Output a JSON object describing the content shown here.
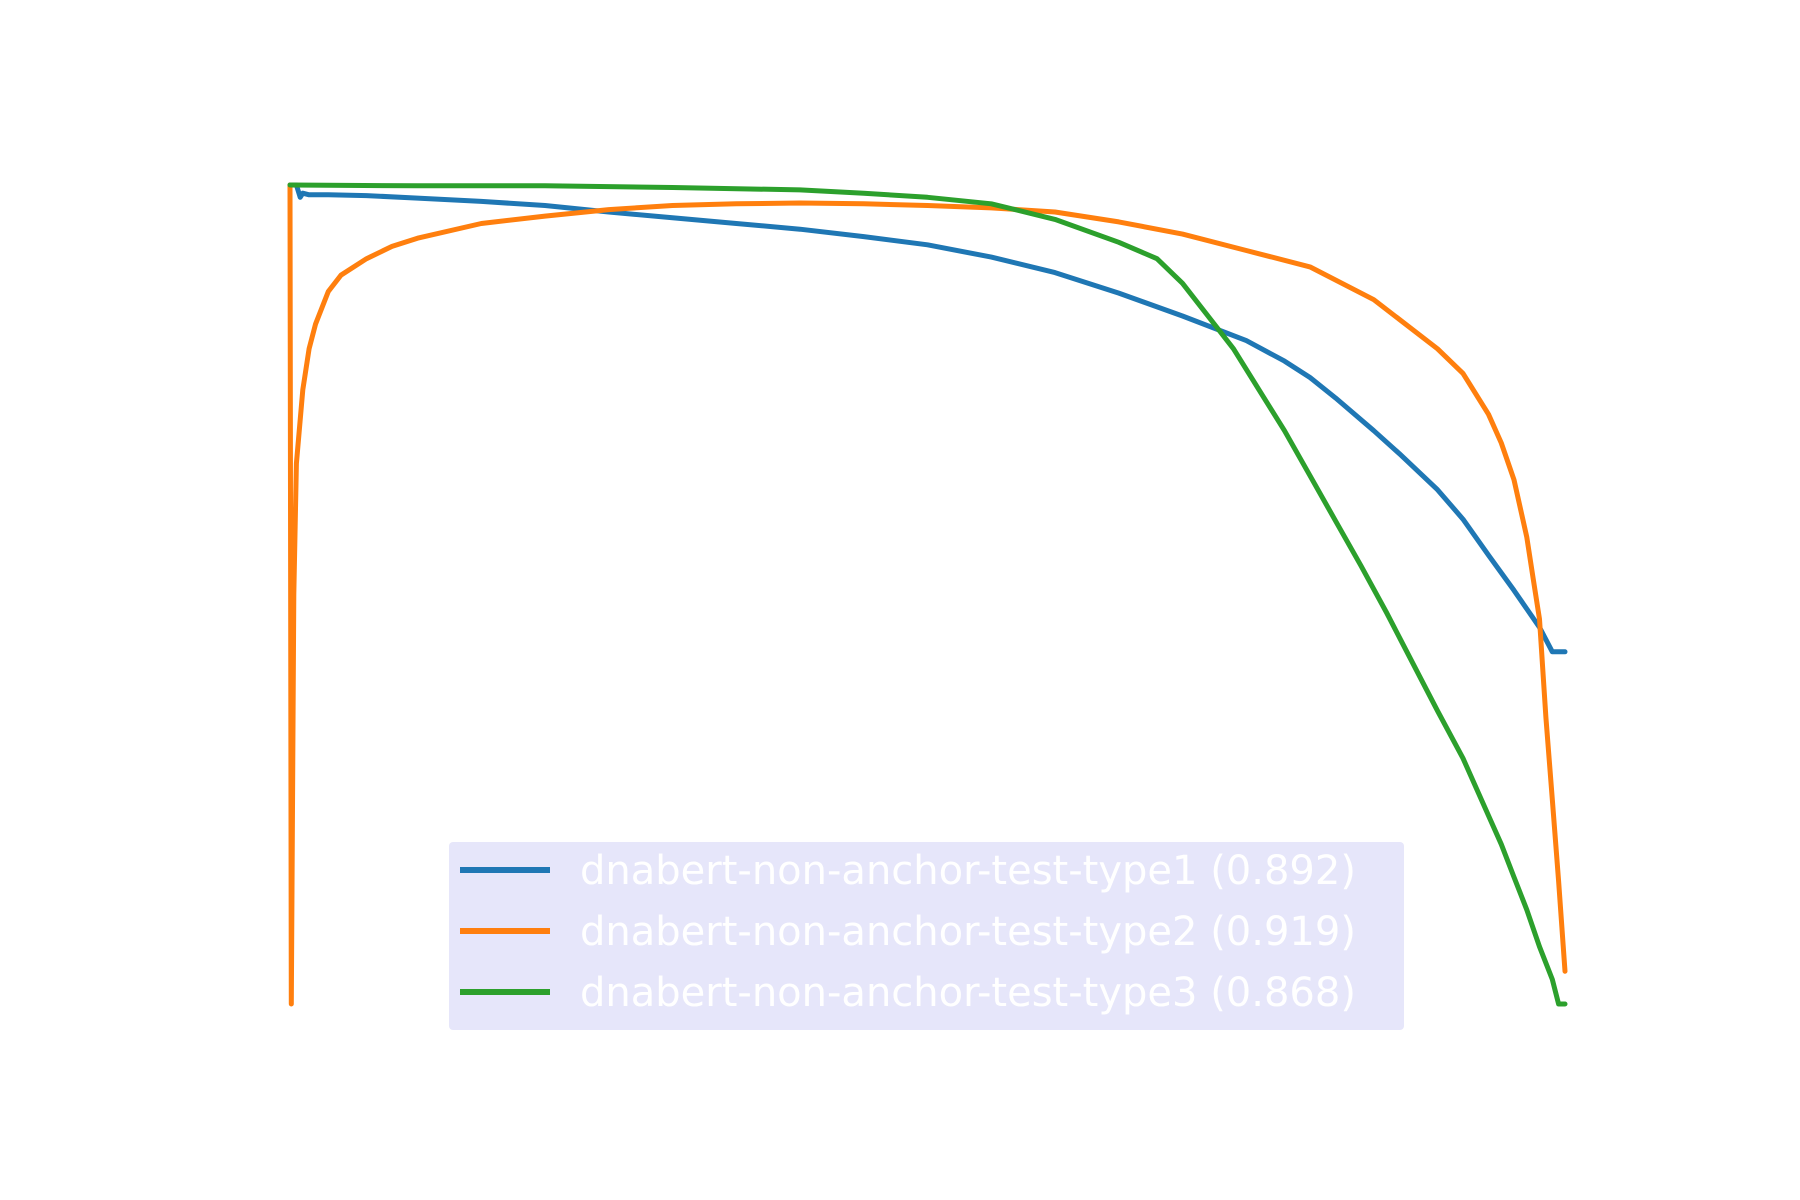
{
  "chart_data": {
    "type": "line",
    "title": "",
    "xlabel": "",
    "ylabel": "",
    "xlim": [
      0,
      1
    ],
    "ylim": [
      0,
      1
    ],
    "grid": false,
    "axes_visible": false,
    "legend_placement": "lower-center",
    "legend_background": "#e6e6fa",
    "series": [
      {
        "name": "dnabert-non-anchor-test-type1 (0.892)",
        "color": "#1f77b4",
        "x": [
          0,
          0.005,
          0.008,
          0.01,
          0.015,
          0.03,
          0.06,
          0.1,
          0.15,
          0.2,
          0.25,
          0.3,
          0.35,
          0.4,
          0.45,
          0.5,
          0.55,
          0.6,
          0.65,
          0.7,
          0.75,
          0.78,
          0.8,
          0.82,
          0.85,
          0.87,
          0.9,
          0.92,
          0.94,
          0.96,
          0.98,
          0.99,
          1.0
        ],
        "y": [
          1.0,
          1.0,
          0.985,
          0.99,
          0.988,
          0.988,
          0.987,
          0.984,
          0.98,
          0.975,
          0.967,
          0.96,
          0.953,
          0.946,
          0.937,
          0.927,
          0.912,
          0.893,
          0.868,
          0.84,
          0.81,
          0.785,
          0.765,
          0.74,
          0.7,
          0.672,
          0.628,
          0.592,
          0.548,
          0.505,
          0.46,
          0.43,
          0.43
        ]
      },
      {
        "name": "dnabert-non-anchor-test-type2 (0.919)",
        "color": "#ff7f0e",
        "x": [
          0,
          0.001,
          0.003,
          0.005,
          0.01,
          0.015,
          0.02,
          0.03,
          0.04,
          0.06,
          0.08,
          0.1,
          0.15,
          0.2,
          0.25,
          0.3,
          0.35,
          0.4,
          0.45,
          0.5,
          0.55,
          0.6,
          0.65,
          0.7,
          0.75,
          0.8,
          0.85,
          0.9,
          0.92,
          0.94,
          0.95,
          0.96,
          0.97,
          0.975,
          0.98,
          0.985,
          0.99,
          0.995,
          1.0
        ],
        "y": [
          1.0,
          0.0,
          0.5,
          0.66,
          0.75,
          0.8,
          0.83,
          0.87,
          0.89,
          0.91,
          0.925,
          0.935,
          0.953,
          0.962,
          0.97,
          0.975,
          0.977,
          0.978,
          0.977,
          0.975,
          0.972,
          0.967,
          0.955,
          0.94,
          0.92,
          0.9,
          0.86,
          0.8,
          0.77,
          0.72,
          0.685,
          0.64,
          0.57,
          0.52,
          0.47,
          0.35,
          0.25,
          0.15,
          0.04
        ]
      },
      {
        "name": "dnabert-non-anchor-test-type3 (0.868)",
        "color": "#2ca02c",
        "x": [
          0,
          0.1,
          0.2,
          0.3,
          0.4,
          0.45,
          0.5,
          0.55,
          0.6,
          0.65,
          0.68,
          0.7,
          0.72,
          0.74,
          0.76,
          0.78,
          0.8,
          0.82,
          0.84,
          0.86,
          0.88,
          0.9,
          0.92,
          0.94,
          0.95,
          0.96,
          0.97,
          0.98,
          0.99,
          0.995,
          1.0
        ],
        "y": [
          1.0,
          0.999,
          0.999,
          0.997,
          0.994,
          0.99,
          0.985,
          0.977,
          0.958,
          0.93,
          0.91,
          0.88,
          0.84,
          0.8,
          0.75,
          0.7,
          0.645,
          0.59,
          0.535,
          0.478,
          0.418,
          0.358,
          0.3,
          0.23,
          0.195,
          0.155,
          0.115,
          0.07,
          0.03,
          0.0,
          0.0
        ]
      }
    ]
  }
}
